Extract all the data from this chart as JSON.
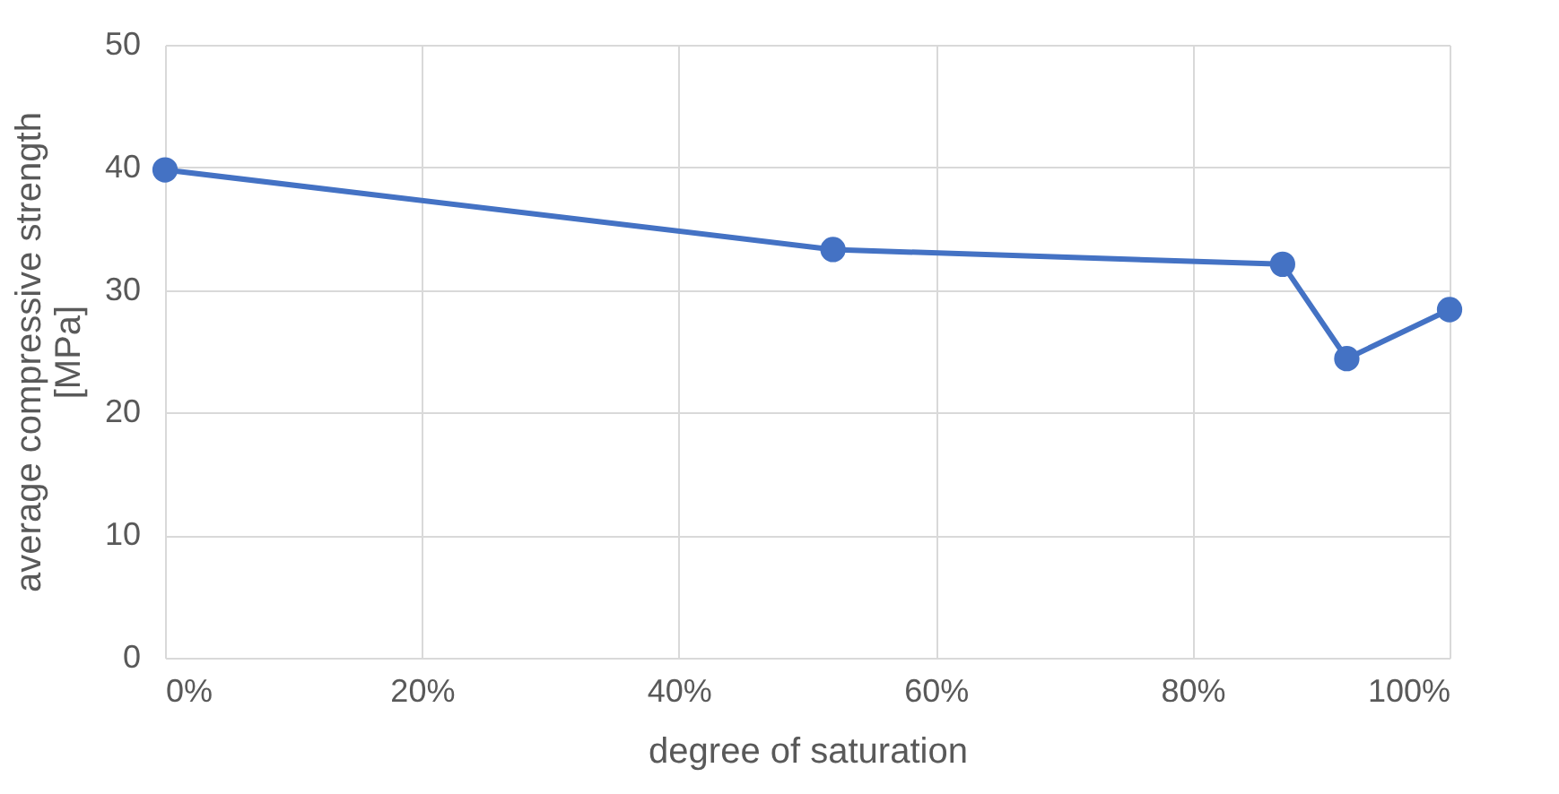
{
  "chart_data": {
    "type": "line",
    "xlabel": "degree of saturation",
    "ylabel": "average compressive strength\n[MPa]",
    "x": [
      0,
      52,
      87,
      92,
      100
    ],
    "series": [
      {
        "color": "#4472c4",
        "values": [
          39.8,
          33.3,
          32.1,
          24.4,
          28.4
        ]
      }
    ],
    "xlim": [
      0,
      100
    ],
    "xticks": [
      {
        "value": 0,
        "label": "0%"
      },
      {
        "value": 20,
        "label": "20%"
      },
      {
        "value": 40,
        "label": "40%"
      },
      {
        "value": 60,
        "label": "60%"
      },
      {
        "value": 80,
        "label": "80%"
      },
      {
        "value": 100,
        "label": "100%"
      }
    ],
    "ylim": [
      0,
      50
    ],
    "yticks": [
      0,
      10,
      20,
      30,
      40,
      50
    ],
    "grid": true,
    "marker": "circle",
    "line_style": "solid"
  }
}
